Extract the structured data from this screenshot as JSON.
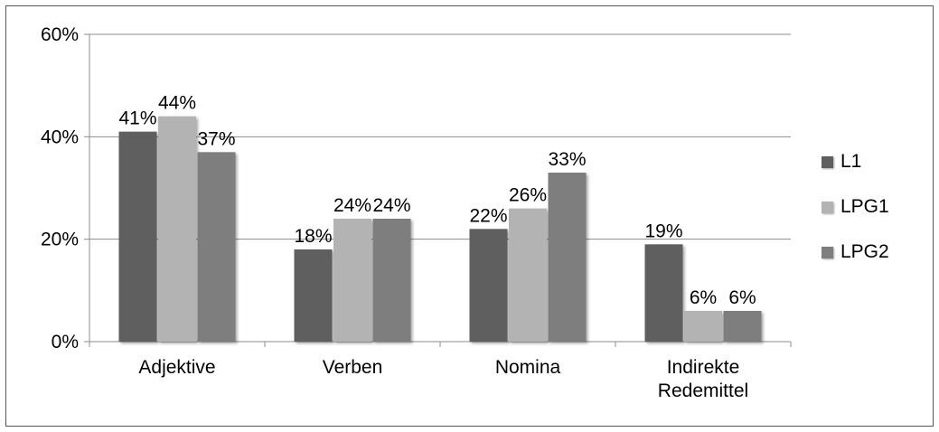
{
  "chart_data": {
    "type": "bar",
    "categories": [
      "Adjektive",
      "Verben",
      "Nomina",
      "Indirekte Redemittel"
    ],
    "category_lines": [
      [
        "Adjektive"
      ],
      [
        "Verben"
      ],
      [
        "Nomina"
      ],
      [
        "Indirekte",
        "Redemittel"
      ]
    ],
    "series": [
      {
        "name": "L1",
        "values": [
          41,
          18,
          22,
          19
        ],
        "labels": [
          "41%",
          "18%",
          "22%",
          "19%"
        ],
        "color": "#5f5f5f"
      },
      {
        "name": "LPG1",
        "values": [
          44,
          24,
          26,
          6
        ],
        "labels": [
          "44%",
          "24%",
          "26%",
          "6%"
        ],
        "color": "#b3b3b3"
      },
      {
        "name": "LPG2",
        "values": [
          37,
          24,
          33,
          6
        ],
        "labels": [
          "37%",
          "24%",
          "33%",
          "6%"
        ],
        "color": "#7e7e7e"
      }
    ],
    "yticks": [
      0,
      20,
      40,
      60
    ],
    "ytick_labels": [
      "0%",
      "20%",
      "40%",
      "60%"
    ],
    "ylim": [
      0,
      60
    ],
    "grid": true,
    "legend_position": "right"
  }
}
